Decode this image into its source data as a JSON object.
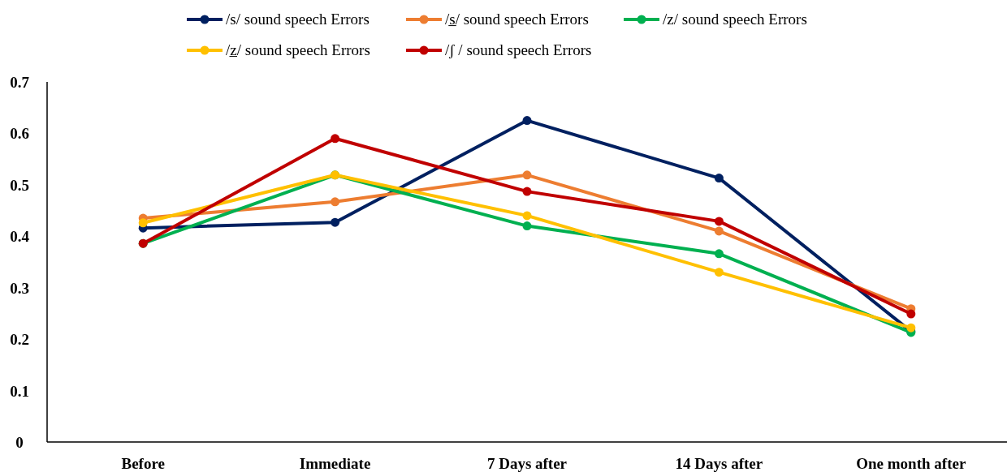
{
  "chart_data": {
    "type": "line",
    "categories": [
      "Before",
      "Immediate",
      "7 Days after",
      "14 Days after",
      "One month after"
    ],
    "series": [
      {
        "name": "/s/ sound speech Errors",
        "color": "#002060",
        "values": [
          0.416,
          0.427,
          0.625,
          0.513,
          0.215
        ]
      },
      {
        "name": "/s̲/ sound speech Errors",
        "color": "#ed7d31",
        "values": [
          0.435,
          0.467,
          0.519,
          0.41,
          0.259
        ]
      },
      {
        "name": "/z/ sound speech Errors",
        "color": "#00b050",
        "values": [
          0.386,
          0.519,
          0.42,
          0.366,
          0.213
        ]
      },
      {
        "name": "/z̲/ sound speech Errors",
        "color": "#ffc000",
        "values": [
          0.426,
          0.519,
          0.44,
          0.33,
          0.222
        ]
      },
      {
        "name": "/ʃ /  sound speech Errors",
        "color": "#c00000",
        "values": [
          0.386,
          0.59,
          0.487,
          0.429,
          0.249
        ]
      }
    ],
    "ylim": [
      0,
      0.7
    ],
    "yticks": [
      0,
      0.1,
      0.2,
      0.3,
      0.4,
      0.5,
      0.6,
      0.7
    ],
    "grid": false,
    "legend": "top",
    "marker": "circle",
    "line_style": "solid"
  }
}
